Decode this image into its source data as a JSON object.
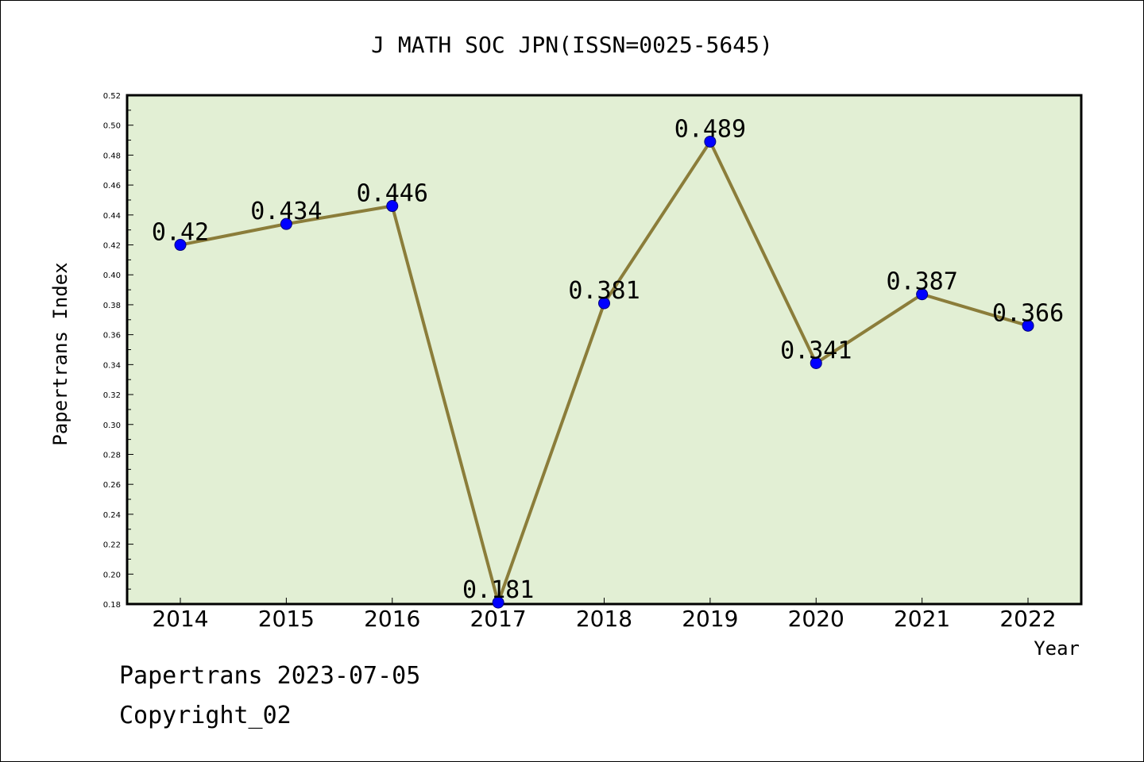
{
  "chart_data": {
    "type": "line",
    "title": "J MATH SOC JPN(ISSN=0025-5645)",
    "xlabel": "Year",
    "ylabel": "Papertrans Index",
    "categories": [
      "2014",
      "2015",
      "2016",
      "2017",
      "2018",
      "2019",
      "2020",
      "2021",
      "2022"
    ],
    "series": [
      {
        "values": [
          0.42,
          0.434,
          0.446,
          0.181,
          0.381,
          0.489,
          0.341,
          0.387,
          0.366
        ],
        "data_labels": [
          "0.42",
          "0.434",
          "0.446",
          "0.181",
          "0.381",
          "0.489",
          "0.341",
          "0.387",
          "0.366"
        ],
        "line_color": "#8b7d3a",
        "marker_color": "#0000ff"
      }
    ],
    "ylim": [
      0.18,
      0.52
    ],
    "yticks": [
      "0.18",
      "0.20",
      "0.22",
      "0.24",
      "0.26",
      "0.28",
      "0.30",
      "0.32",
      "0.34",
      "0.36",
      "0.38",
      "0.40",
      "0.42",
      "0.44",
      "0.46",
      "0.48",
      "0.50",
      "0.52"
    ],
    "plot_background": "#e2efd4",
    "grid": false,
    "legend": "none"
  },
  "footer": {
    "line1": "Papertrans 2023-07-05",
    "line2": "Copyright_02"
  }
}
